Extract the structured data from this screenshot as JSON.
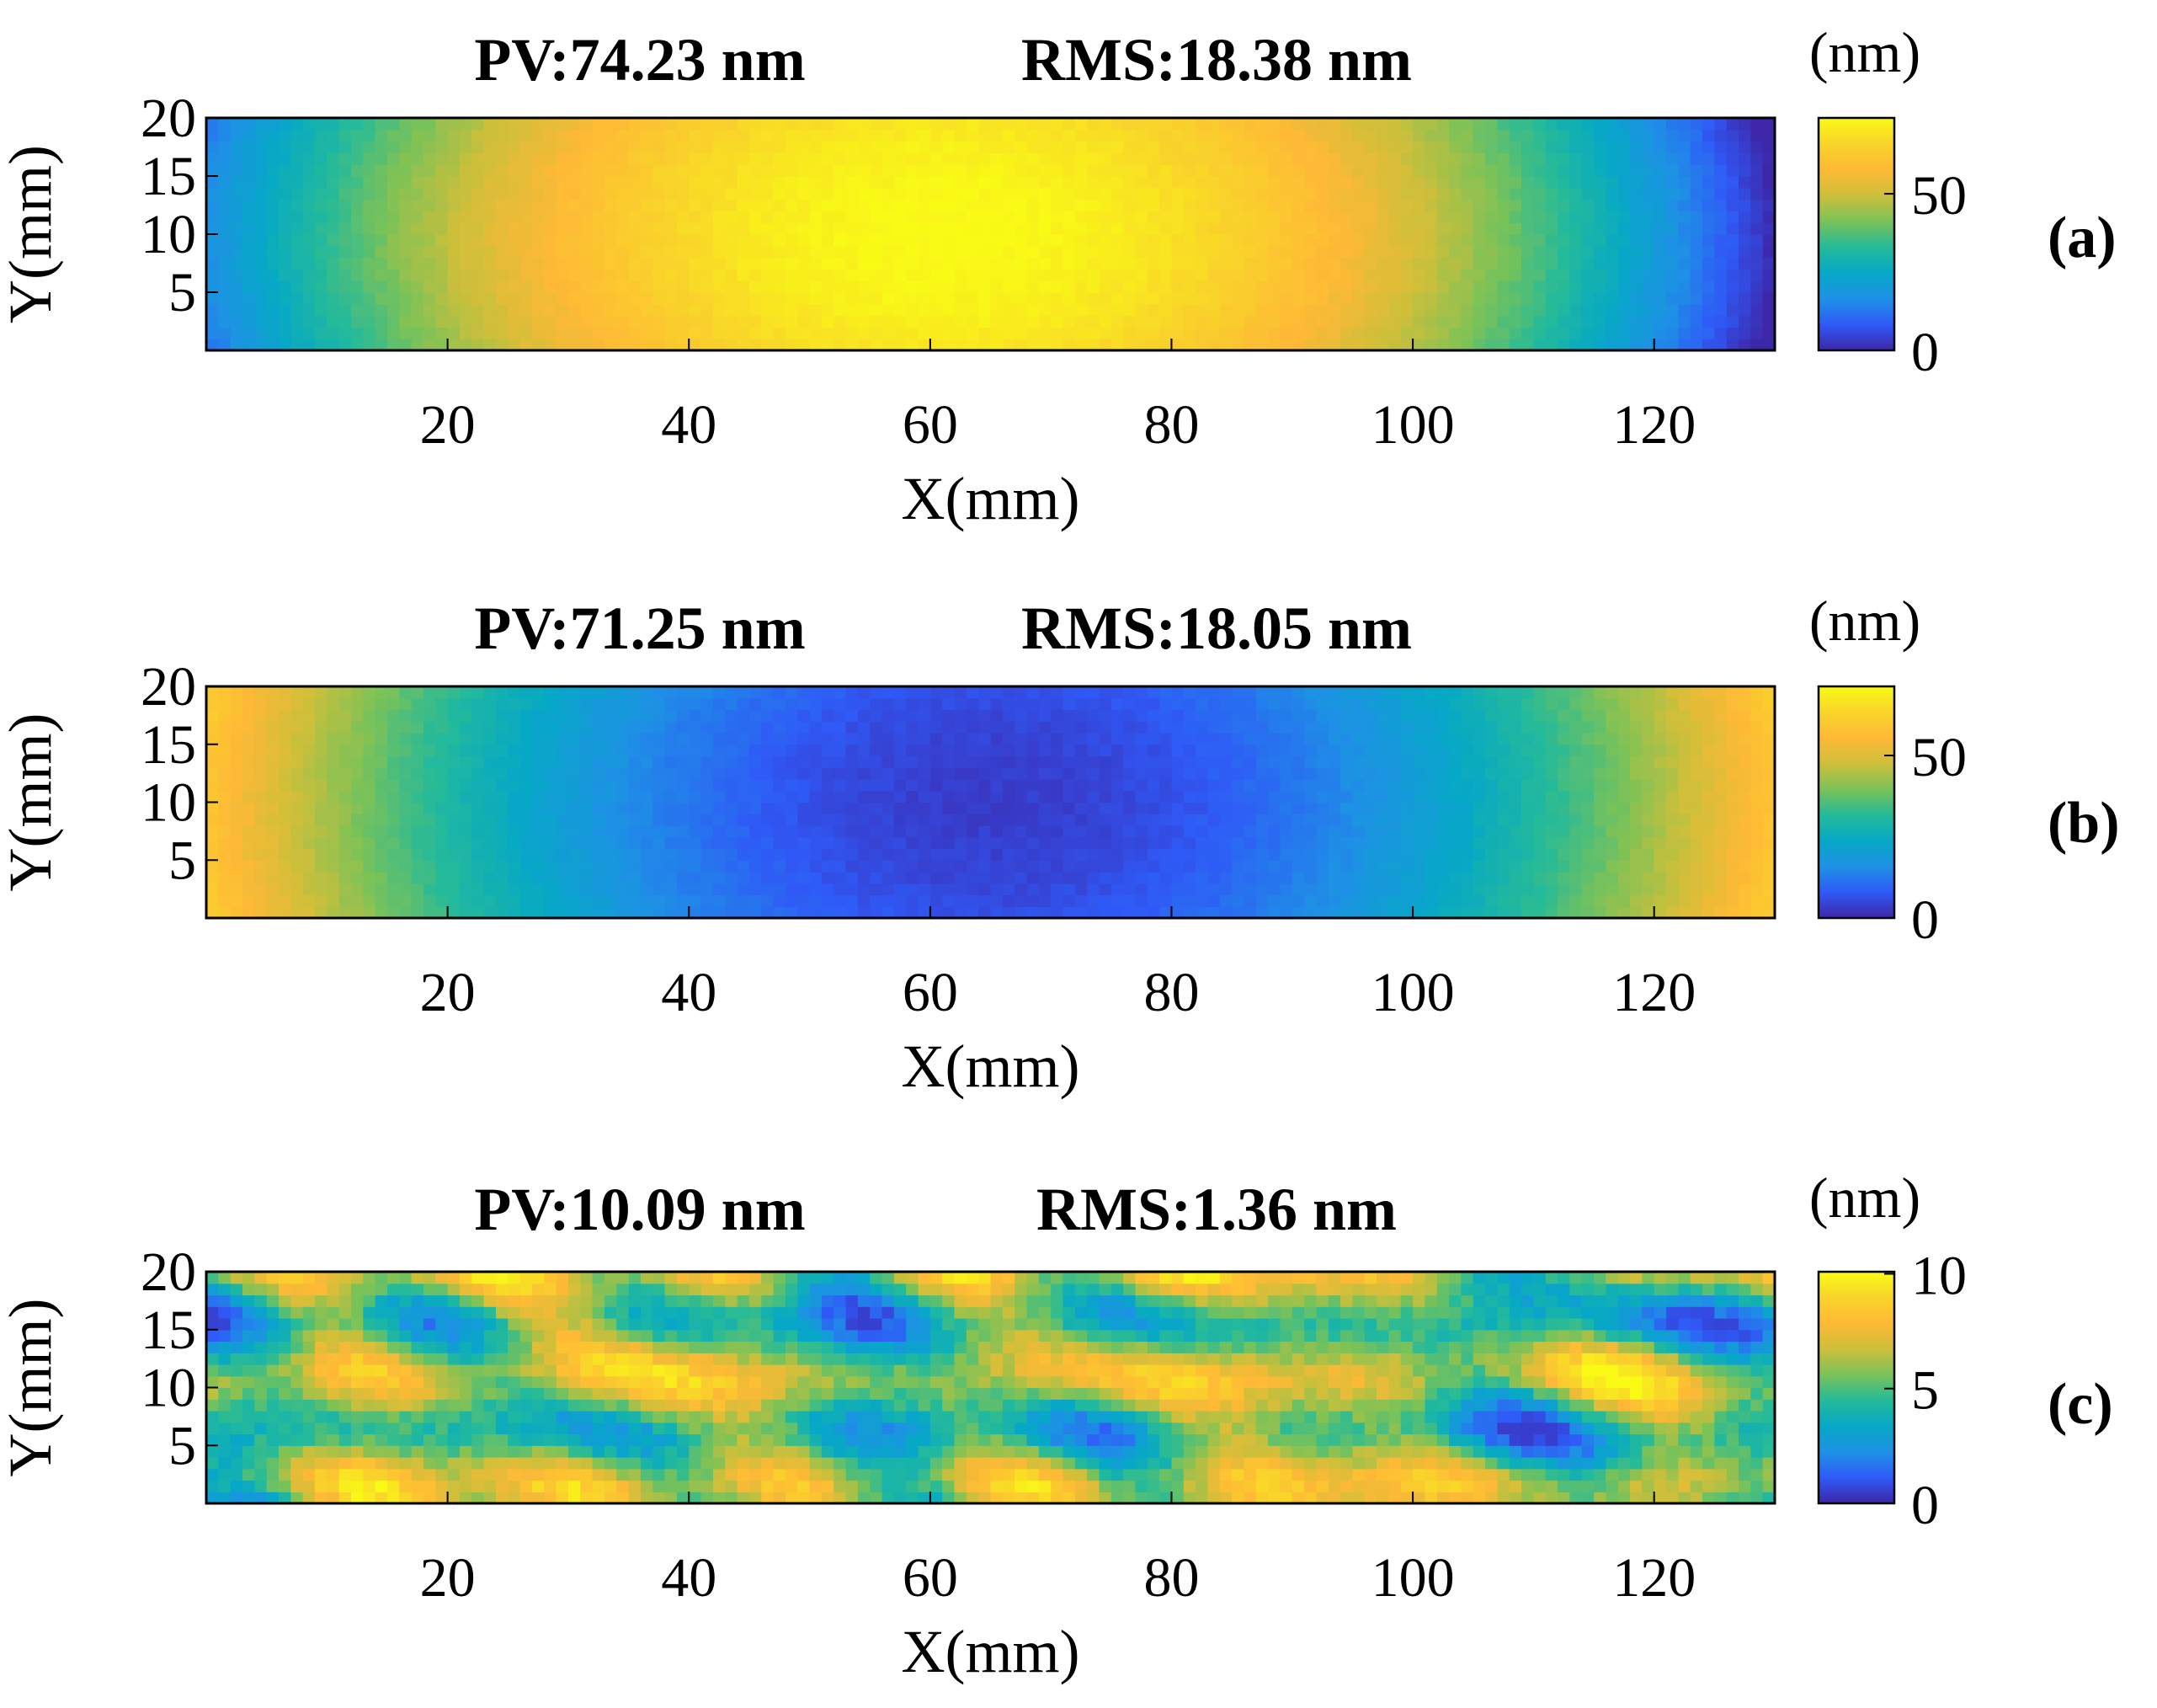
{
  "chart_data": [
    {
      "type": "heatmap",
      "panel_label": "(a)",
      "title_pv": "PV:74.23 nm",
      "title_rms": "RMS:18.38 nm",
      "xlabel": "X(mm)",
      "ylabel": "Y(mm)",
      "xlim": [
        0,
        130
      ],
      "ylim": [
        0,
        20
      ],
      "xticks": [
        20,
        40,
        60,
        80,
        100,
        120
      ],
      "yticks": [
        5,
        10,
        15,
        20
      ],
      "colorbar": {
        "unit": "(nm)",
        "range": [
          0,
          74.23
        ],
        "ticks": [
          0,
          50
        ]
      },
      "pattern": "dome-high-center",
      "pv_nm": 74.23,
      "rms_nm": 18.38
    },
    {
      "type": "heatmap",
      "panel_label": "(b)",
      "title_pv": "PV:71.25 nm",
      "title_rms": "RMS:18.05 nm",
      "xlabel": "X(mm)",
      "ylabel": "Y(mm)",
      "xlim": [
        0,
        130
      ],
      "ylim": [
        0,
        20
      ],
      "xticks": [
        20,
        40,
        60,
        80,
        100,
        120
      ],
      "yticks": [
        5,
        10,
        15,
        20
      ],
      "colorbar": {
        "unit": "(nm)",
        "range": [
          0,
          71.25
        ],
        "ticks": [
          0,
          50
        ]
      },
      "pattern": "bowl-low-center",
      "pv_nm": 71.25,
      "rms_nm": 18.05
    },
    {
      "type": "heatmap",
      "panel_label": "(c)",
      "title_pv": "PV:10.09 nm",
      "title_rms": "RMS:1.36 nm",
      "xlabel": "X(mm)",
      "ylabel": "Y(mm)",
      "xlim": [
        0,
        130
      ],
      "ylim": [
        0,
        20
      ],
      "xticks": [
        20,
        40,
        60,
        80,
        100,
        120
      ],
      "yticks": [
        5,
        10,
        15,
        20
      ],
      "colorbar": {
        "unit": "(nm)",
        "range": [
          0,
          10.09
        ],
        "ticks": [
          0,
          5,
          10
        ]
      },
      "pattern": "residual-horizontal-bands",
      "pv_nm": 10.09,
      "rms_nm": 1.36
    }
  ],
  "colormap": [
    "#3e26a8",
    "#2f5af7",
    "#1e91e5",
    "#06a8c6",
    "#24ba9a",
    "#7bc258",
    "#cebf3a",
    "#feb936",
    "#f9d42a",
    "#f9fb15"
  ]
}
